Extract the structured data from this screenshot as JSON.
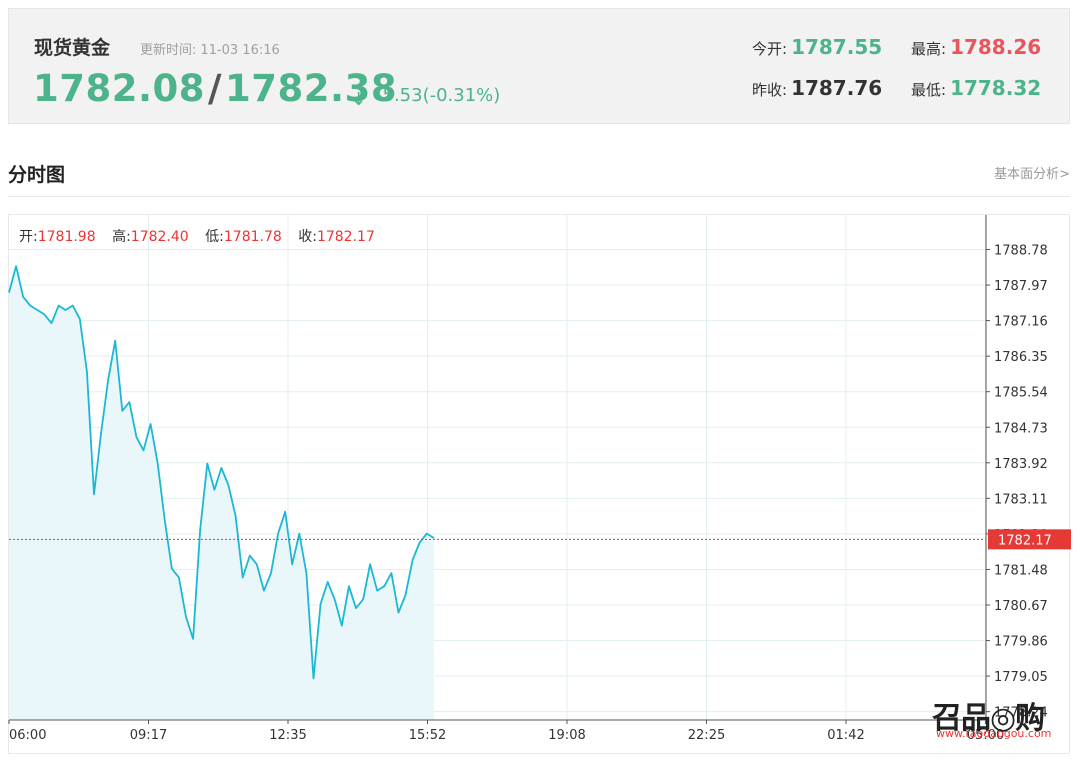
{
  "quote": {
    "name": "现货黄金",
    "update_label": "更新时间:",
    "update_time": "11-03 16:16",
    "bid": "1782.08",
    "slash": "/",
    "ask": "1782.38",
    "arrow": "↓",
    "change": "-5.53(-0.31%)",
    "stats": [
      {
        "label": "今开:",
        "value": "1787.55",
        "tone": "green"
      },
      {
        "label": "最高:",
        "value": "1788.26",
        "tone": "red"
      },
      {
        "label": "昨收:",
        "value": "1787.76",
        "tone": "dark"
      },
      {
        "label": "最低:",
        "value": "1778.32",
        "tone": "green"
      }
    ]
  },
  "section": {
    "title": "分时图",
    "link": "基本面分析>"
  },
  "colors": {
    "up": "#e8565c",
    "down": "#4db38a",
    "line": "#1ab8d3",
    "area": "#e9f7fb",
    "current": "#e53935"
  },
  "ohlc": [
    {
      "label": "开:",
      "value": "1781.98"
    },
    {
      "label": "高:",
      "value": "1782.40"
    },
    {
      "label": "低:",
      "value": "1781.78"
    },
    {
      "label": "收:",
      "value": "1782.17"
    }
  ],
  "watermark": {
    "logo": "召品◎购",
    "url": "www.taodaogou.com"
  },
  "chart_data": {
    "type": "area",
    "x_ticks": [
      "06:00",
      "09:17",
      "12:35",
      "15:52",
      "19:08",
      "22:25",
      "01:42",
      "05:00"
    ],
    "y_ticks": [
      "1788.78",
      "1787.97",
      "1787.16",
      "1786.35",
      "1785.54",
      "1784.73",
      "1783.92",
      "1783.11",
      "1782.30",
      "1781.48",
      "1780.67",
      "1779.86",
      "1779.05",
      "1778.24"
    ],
    "ylim": [
      1778.24,
      1788.78
    ],
    "current_label": "1782.17",
    "current_value": 1782.17,
    "x": [
      "06:00",
      "06:10",
      "06:20",
      "06:30",
      "06:40",
      "06:50",
      "07:00",
      "07:10",
      "07:20",
      "07:30",
      "07:40",
      "07:50",
      "08:00",
      "08:10",
      "08:20",
      "08:30",
      "08:40",
      "08:50",
      "09:00",
      "09:10",
      "09:20",
      "09:30",
      "09:40",
      "09:50",
      "10:00",
      "10:10",
      "10:20",
      "10:30",
      "10:40",
      "10:50",
      "11:00",
      "11:10",
      "11:20",
      "11:30",
      "11:40",
      "11:50",
      "12:00",
      "12:10",
      "12:20",
      "12:30",
      "12:40",
      "12:50",
      "13:00",
      "13:10",
      "13:20",
      "13:30",
      "13:40",
      "13:50",
      "14:00",
      "14:10",
      "14:20",
      "14:30",
      "14:40",
      "14:50",
      "15:00",
      "15:10",
      "15:20",
      "15:30",
      "15:40",
      "15:50",
      "16:00"
    ],
    "values": [
      1787.8,
      1788.4,
      1787.7,
      1787.5,
      1787.4,
      1787.3,
      1787.1,
      1787.5,
      1787.4,
      1787.5,
      1787.2,
      1786.0,
      1783.2,
      1784.6,
      1785.8,
      1786.7,
      1785.1,
      1785.3,
      1784.5,
      1784.2,
      1784.8,
      1783.9,
      1782.6,
      1781.5,
      1781.3,
      1780.4,
      1779.9,
      1782.4,
      1783.9,
      1783.3,
      1783.8,
      1783.4,
      1782.7,
      1781.3,
      1781.8,
      1781.6,
      1781.0,
      1781.4,
      1782.3,
      1782.8,
      1781.6,
      1782.3,
      1781.4,
      1779.0,
      1780.7,
      1781.2,
      1780.8,
      1780.2,
      1781.1,
      1780.6,
      1780.8,
      1781.6,
      1781.0,
      1781.1,
      1781.4,
      1780.5,
      1780.9,
      1781.7,
      1782.1,
      1782.3,
      1782.2
    ]
  }
}
